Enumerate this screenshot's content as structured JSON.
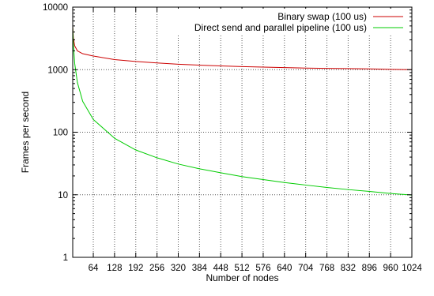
{
  "chart_data": {
    "type": "line",
    "title": "",
    "xlabel": "Number of nodes",
    "ylabel": "Frames per second",
    "xlim": [
      2,
      1024
    ],
    "ylim": [
      1,
      10000
    ],
    "yscale": "log",
    "grid": true,
    "legend_position": "top-right",
    "x_ticks": [
      64,
      128,
      192,
      256,
      320,
      384,
      448,
      512,
      576,
      640,
      704,
      768,
      832,
      896,
      960,
      1024
    ],
    "y_ticks": [
      {
        "value": 1,
        "label": "1"
      },
      {
        "value": 10,
        "label": "10"
      },
      {
        "value": 100,
        "label": "100"
      },
      {
        "value": 1000,
        "label": "1000"
      },
      {
        "value": 10000,
        "label": "10000"
      }
    ],
    "series": [
      {
        "name": "Binary swap (100 us)",
        "color": "#cc0000",
        "x": [
          2,
          4,
          8,
          16,
          32,
          64,
          128,
          192,
          256,
          320,
          384,
          448,
          512,
          576,
          640,
          704,
          768,
          832,
          896,
          960,
          1024
        ],
        "y": [
          5000,
          3200,
          2400,
          2000,
          1800,
          1650,
          1450,
          1350,
          1280,
          1220,
          1180,
          1150,
          1120,
          1100,
          1080,
          1060,
          1050,
          1040,
          1030,
          1010,
          1000
        ]
      },
      {
        "name": "Direct send and parallel pipeline (100 us)",
        "color": "#00cc00",
        "x": [
          2,
          4,
          8,
          16,
          32,
          64,
          128,
          192,
          256,
          320,
          384,
          448,
          512,
          576,
          640,
          704,
          768,
          832,
          896,
          960,
          1024
        ],
        "y": [
          5000,
          2500,
          1250,
          625,
          312,
          160,
          80,
          52,
          39,
          31,
          26,
          22.5,
          19.5,
          17.5,
          15.7,
          14.3,
          13.1,
          12.1,
          11.3,
          10.5,
          9.9
        ]
      }
    ]
  }
}
